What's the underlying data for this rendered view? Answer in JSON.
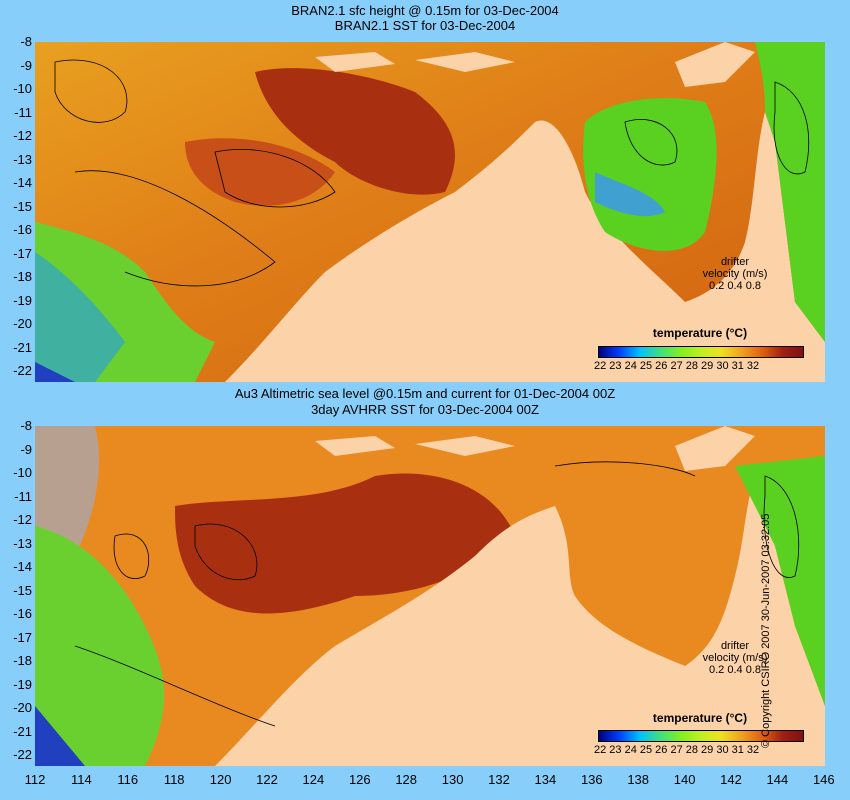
{
  "top_panel": {
    "title_line1": "BRAN2.1 sfc height @ 0.15m for 03-Dec-2004",
    "title_line2": "BRAN2.1 SST for 03-Dec-2004",
    "colorbar_title": "temperature (°C)",
    "colorbar_ticks": "22 23 24 25 26 27 28 29 30 31 32",
    "drifter_line1": "drifter",
    "drifter_line2": "velocity (m/s)",
    "drifter_line3": "0.2  0.4  0.8"
  },
  "bottom_panel": {
    "title_line1": "Au3 Altimetric sea level  @0.15m and current for 01-Dec-2004 00Z",
    "title_line2": "3day AVHRR SST for 03-Dec-2004 00Z",
    "colorbar_title": "temperature (°C)",
    "colorbar_ticks": "22 23 24 25 26 27 28 29 30 31 32",
    "drifter_line1": "drifter",
    "drifter_line2": "velocity (m/s)",
    "drifter_line3": "0.2  0.4  0.8"
  },
  "y_axis_labels": [
    "-8",
    "-9",
    "-10",
    "-11",
    "-12",
    "-13",
    "-14",
    "-15",
    "-16",
    "-17",
    "-18",
    "-19",
    "-20",
    "-21",
    "-22"
  ],
  "x_axis_labels": [
    "112",
    "114",
    "116",
    "118",
    "120",
    "122",
    "124",
    "126",
    "128",
    "130",
    "132",
    "134",
    "136",
    "138",
    "140",
    "142",
    "144",
    "146"
  ],
  "copyright": "© Copyright CSIRO 2007  30-Jun-2007 03:32:05",
  "colors": {
    "background": "#87cefa",
    "land": "#fcd2a8",
    "warm_sst": "#a03010",
    "mid_sst": "#e88a20",
    "cool_sst": "#5ad020"
  }
}
